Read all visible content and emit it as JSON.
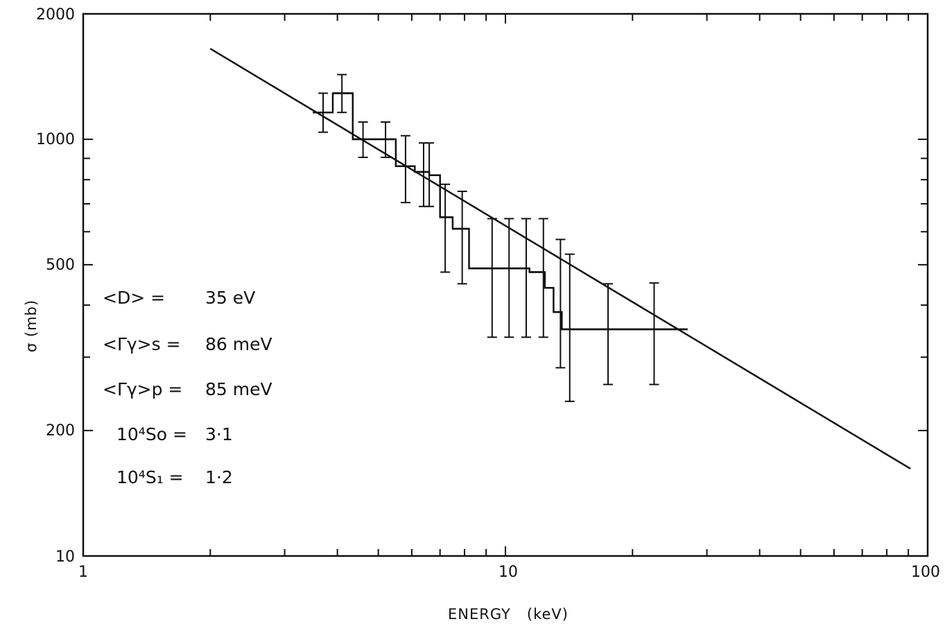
{
  "chart_data": {
    "type": "line",
    "title": "",
    "xlabel": "ENERGY   (keV)",
    "ylabel": "σ (mb)",
    "xscale": "log",
    "yscale": "log",
    "xlim": [
      1,
      100
    ],
    "ylim": [
      100,
      2000
    ],
    "x_tick_labels": [
      "1",
      "10",
      "100"
    ],
    "y_tick_labels": [
      "2000",
      "1000",
      "500",
      "200",
      "10"
    ],
    "grid": false,
    "legend": "none",
    "series": [
      {
        "kind": "calculated curve",
        "points": [
          [
            2.0,
            1650
          ],
          [
            91,
            162
          ]
        ]
      },
      {
        "kind": "measured histogram",
        "points": [
          {
            "x_from": 3.5,
            "x_to": 3.9,
            "y": 1160,
            "err_x": 3.7,
            "err_lo": 1040,
            "err_hi": 1290
          },
          {
            "x_from": 3.9,
            "x_to": 4.35,
            "y": 1290,
            "err_x": 4.1,
            "err_lo": 1160,
            "err_hi": 1430
          },
          {
            "x_from": 4.35,
            "x_to": 5.0,
            "y": 1000,
            "err_x": 4.6,
            "err_lo": 905,
            "err_hi": 1100
          },
          {
            "x_from": 5.0,
            "x_to": 5.5,
            "y": 1000,
            "err_x": 5.2,
            "err_lo": 905,
            "err_hi": 1100
          },
          {
            "x_from": 5.5,
            "x_to": 6.1,
            "y": 862,
            "err_x": 5.8,
            "err_lo": 705,
            "err_hi": 1020
          },
          {
            "x_from": 6.1,
            "x_to": 6.6,
            "y": 835,
            "err_x": 6.4,
            "err_lo": 690,
            "err_hi": 980
          },
          {
            "x_from": 6.6,
            "x_to": 7.0,
            "y": 820,
            "err_x": 6.6,
            "err_lo": 690,
            "err_hi": 980
          },
          {
            "x_from": 7.0,
            "x_to": 7.5,
            "y": 650,
            "err_x": 7.2,
            "err_lo": 480,
            "err_hi": 780
          },
          {
            "x_from": 7.5,
            "x_to": 8.2,
            "y": 610,
            "err_x": 7.9,
            "err_lo": 450,
            "err_hi": 750
          },
          {
            "x_from": 8.2,
            "x_to": 9.7,
            "y": 490,
            "err_x": 9.3,
            "err_lo": 335,
            "err_hi": 645
          },
          {
            "x_from": 9.7,
            "x_to": 11.4,
            "y": 490,
            "err_x": 10.2,
            "err_lo": 335,
            "err_hi": 645
          },
          {
            "x_from": 11.4,
            "x_to": 12.4,
            "y": 480,
            "err_x": 11.2,
            "err_lo": 335,
            "err_hi": 645
          },
          {
            "x_from": 12.4,
            "x_to": 13.0,
            "y": 440,
            "err_x": 12.3,
            "err_lo": 335,
            "err_hi": 645
          },
          {
            "x_from": 13.0,
            "x_to": 13.6,
            "y": 385,
            "err_x": 13.5,
            "err_lo": 283,
            "err_hi": 575
          },
          {
            "x_from": 13.6,
            "x_to": 14.5,
            "y": 350,
            "err_x": 14.2,
            "err_lo": 235,
            "err_hi": 530
          },
          {
            "x_from": 14.5,
            "x_to": 27.0,
            "y": 350,
            "err_x": 17.5,
            "err_lo": 258,
            "err_hi": 450
          }
        ],
        "extra_error_bars": [
          {
            "x": 22.5,
            "lo": 258,
            "hi": 452
          }
        ]
      }
    ],
    "annotations": {
      "d_lhs": "<D>  =",
      "d_val": "35 eV",
      "gs_lhs": "<Γγ>s =",
      "gs_val": "86 meV",
      "gp_lhs": "<Γγ>p =",
      "gp_val": "85 meV",
      "s0_lhs": "10⁴So =",
      "s0_val": "3·1",
      "s1_lhs": "10⁴S₁ =",
      "s1_val": "1·2"
    }
  }
}
